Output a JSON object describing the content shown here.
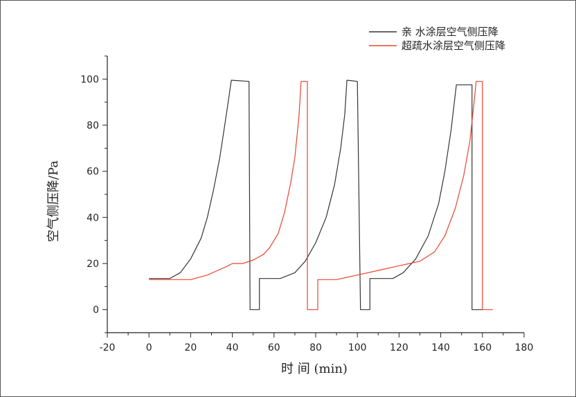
{
  "chart_data": {
    "type": "line",
    "title": "",
    "xlabel": "时 间 (min)",
    "ylabel": "空气侧压降/Pa",
    "xlim": [
      -20,
      180
    ],
    "ylim": [
      -10,
      110
    ],
    "x_ticks": [
      -20,
      0,
      20,
      40,
      60,
      80,
      100,
      120,
      140,
      160,
      180
    ],
    "y_ticks": [
      0,
      20,
      40,
      60,
      80,
      100
    ],
    "grid": false,
    "legend_position": "top-right",
    "series": [
      {
        "name": "亲  水涂层空气侧压降",
        "color": "#333333",
        "points": [
          [
            0,
            13.5
          ],
          [
            10,
            13.5
          ],
          [
            15,
            16
          ],
          [
            20,
            22
          ],
          [
            25,
            31
          ],
          [
            28,
            40
          ],
          [
            31,
            52
          ],
          [
            34,
            66
          ],
          [
            36,
            78
          ],
          [
            38,
            90
          ],
          [
            39.5,
            99.5
          ],
          [
            48,
            99
          ],
          [
            48.5,
            0
          ],
          [
            53,
            0
          ],
          [
            53,
            13.5
          ],
          [
            63,
            13.5
          ],
          [
            70,
            16
          ],
          [
            75,
            21
          ],
          [
            80,
            29
          ],
          [
            85,
            40
          ],
          [
            89,
            54
          ],
          [
            92,
            70
          ],
          [
            94,
            85
          ],
          [
            95,
            99.5
          ],
          [
            100,
            99
          ],
          [
            101.5,
            0
          ],
          [
            106,
            0
          ],
          [
            106,
            13.5
          ],
          [
            117,
            13.5
          ],
          [
            122,
            16
          ],
          [
            128,
            22
          ],
          [
            134,
            32
          ],
          [
            139,
            46
          ],
          [
            142,
            60
          ],
          [
            145,
            78
          ],
          [
            147.5,
            97.5
          ],
          [
            155,
            97.5
          ],
          [
            155,
            0
          ],
          [
            160,
            0
          ]
        ]
      },
      {
        "name": "超疏水涂层空气侧压降",
        "color": "#e8432f",
        "points": [
          [
            0,
            13
          ],
          [
            20,
            13
          ],
          [
            28,
            15
          ],
          [
            33,
            17
          ],
          [
            38,
            19
          ],
          [
            40,
            20
          ],
          [
            45,
            20
          ],
          [
            50,
            21.5
          ],
          [
            55,
            24
          ],
          [
            58,
            27
          ],
          [
            62,
            33
          ],
          [
            65,
            42
          ],
          [
            68,
            55
          ],
          [
            70,
            66
          ],
          [
            72,
            84
          ],
          [
            73,
            99
          ],
          [
            76,
            99
          ],
          [
            76,
            0
          ],
          [
            81,
            0
          ],
          [
            81,
            13
          ],
          [
            90,
            13
          ],
          [
            100,
            15
          ],
          [
            110,
            17
          ],
          [
            120,
            19
          ],
          [
            125,
            20
          ],
          [
            130,
            21
          ],
          [
            137,
            25
          ],
          [
            142,
            32
          ],
          [
            147,
            44
          ],
          [
            151,
            58
          ],
          [
            154,
            73
          ],
          [
            156,
            90
          ],
          [
            157,
            99
          ],
          [
            160,
            99
          ],
          [
            160,
            0
          ],
          [
            165,
            0
          ]
        ]
      }
    ]
  }
}
